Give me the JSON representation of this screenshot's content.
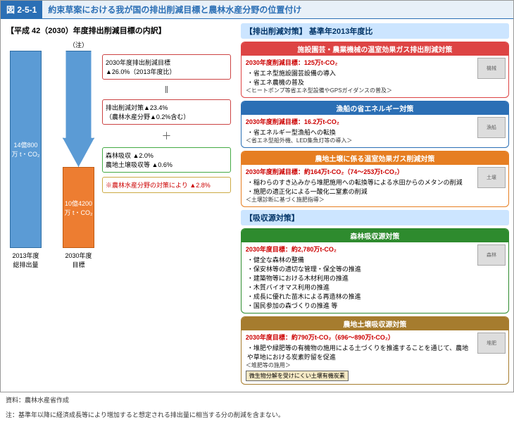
{
  "header": {
    "fig_num": "図 2-5-1",
    "title": "約束草案における我が国の排出削減目標と農林水産分野の位置付け"
  },
  "left": {
    "title": "【平成 42（2030）年度排出削減目標の内訳】",
    "note_label": "（注）",
    "bar2013_value": "14億800万 t・CO₂",
    "bar2013_label": "2013年度\n総排出量",
    "bar2030_value": "10億4200万 t・CO₂",
    "bar2030_label": "2030年度\n目標",
    "box_target": "2030年度排出削減目標\n▲26.0%（2013年度比）",
    "box_measures": "排出削減対策▲23.4%\n（農林水産分野▲0.2%含む）",
    "box_sink": "森林吸収 ▲2.0%\n農地土壌吸収等 ▲0.6%",
    "box_maff": "※農林水産分野の対策により ▲2.8%"
  },
  "right": {
    "section1_header": "【排出削減対策】 基準年2013年度比",
    "measures": [
      {
        "color": "c-red",
        "title": "施設園芸・農業機械の温室効果ガス排出削減対策",
        "target": "2030年度削減目標：125万t-CO₂",
        "items": [
          "省エネ型施設園芸設備の導入",
          "省エネ農機の普及"
        ],
        "note": "＜ヒートポンプ等省エネ型設備やGPSガイダンスの普及＞",
        "icon": "機械"
      },
      {
        "color": "c-blue",
        "title": "漁船の省エネルギー対策",
        "target": "2030年度削減目標：16.2万t-CO₂",
        "items": [
          "省エネルギー型漁船への転換"
        ],
        "note": "＜省エネ型船外機、LED集魚灯等の導入＞",
        "icon": "漁船"
      },
      {
        "color": "c-orange",
        "title": "農地土壌に係る温室効果ガス削減対策",
        "target": "2030年度削減目標：約164万t-CO₂（74～253万t-CO₂）",
        "items": [
          "稲わらのすき込みから堆肥施用への転換等による水田からのメタンの削減",
          "施肥の適正化による一酸化二窒素の削減"
        ],
        "note": "＜土壌診断に基づく施肥指導＞",
        "icon": "土壌"
      }
    ],
    "section2_header": "【吸収源対策】",
    "sinks": [
      {
        "color": "c-green",
        "title": "森林吸収源対策",
        "target": "2030年度目標：約2,780万t-CO₂",
        "items": [
          "健全な森林の整備",
          "保安林等の適切な管理・保全等の推進",
          "建築物等における木材利用の推進",
          "木質バイオマス利用の推進",
          "成長に優れた苗木による再造林の推進",
          "国民参加の森づくりの推進 等"
        ],
        "icon": "森林"
      },
      {
        "color": "c-brown",
        "title": "農地土壌吸収源対策",
        "target": "2030年度目標：約790万t-CO₂（696～890万t-CO₂）",
        "items": [
          "堆肥や緑肥等の有機物の施用による土づくりを推進することを通じて、農地や草地における炭素貯留を促進"
        ],
        "note": "＜堆肥等の施用＞",
        "extra_box": "微生物分解を受けにくい土壌有機炭素",
        "icon": "堆肥"
      }
    ]
  },
  "footnotes": {
    "source": "資料：農林水産省作成",
    "note": "注：基準年以降に経済成長等により増加すると想定される排出量に相当する分の削減を含まない。"
  }
}
